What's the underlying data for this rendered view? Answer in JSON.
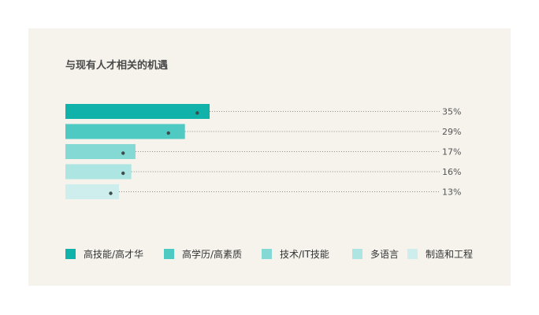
{
  "chart_data": {
    "type": "bar",
    "orientation": "horizontal",
    "title": "与现有人才相关的机遇",
    "categories": [
      "高技能/高才华",
      "高学历/高素质",
      "技术/IT技能",
      "多语言",
      "制造和工程"
    ],
    "values": [
      35,
      29,
      17,
      16,
      13
    ],
    "value_labels": [
      "35%",
      "29%",
      "17%",
      "16%",
      "13%"
    ],
    "marker_values": [
      32,
      25,
      14,
      14,
      11
    ],
    "xlim": [
      0,
      100
    ],
    "grid": false,
    "legend_position": "bottom",
    "colors": [
      "#10b2aa",
      "#4ecac3",
      "#85d9d4",
      "#ace5e1",
      "#cdeeec"
    ]
  }
}
